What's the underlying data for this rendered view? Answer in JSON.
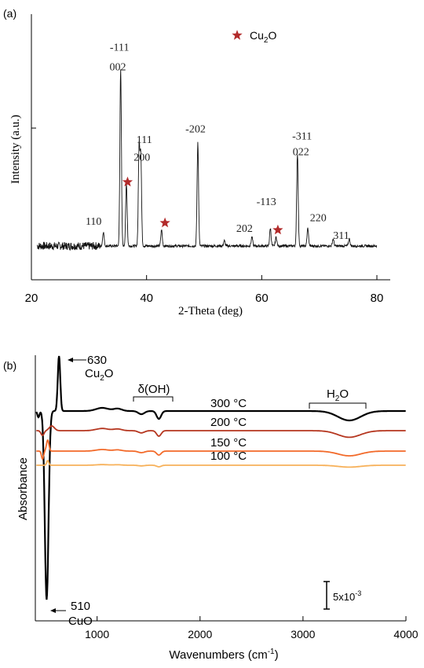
{
  "chart_data": [
    {
      "panel": "(a)",
      "type": "line",
      "xlabel": "2-Theta (deg)",
      "ylabel": "Intensity (a.u.)",
      "xlim": [
        20,
        80
      ],
      "xticks": [
        20,
        40,
        60,
        80
      ],
      "legend": {
        "marker": "star",
        "label": "Cu2O",
        "position": "top-center",
        "color": "#b22b2b"
      },
      "baseline": 10,
      "peaks": [
        {
          "x": 32.5,
          "h": 8
        },
        {
          "x": 35.5,
          "h": 100
        },
        {
          "x": 36.5,
          "h": 35
        },
        {
          "x": 38.7,
          "h": 55
        },
        {
          "x": 39.0,
          "h": 50
        },
        {
          "x": 42.6,
          "h": 9
        },
        {
          "x": 48.9,
          "h": 58
        },
        {
          "x": 53.5,
          "h": 3
        },
        {
          "x": 58.3,
          "h": 5
        },
        {
          "x": 61.5,
          "h": 10
        },
        {
          "x": 62.5,
          "h": 5
        },
        {
          "x": 66.2,
          "h": 52
        },
        {
          "x": 68.0,
          "h": 10
        },
        {
          "x": 72.4,
          "h": 4
        },
        {
          "x": 75.2,
          "h": 4
        }
      ],
      "labels": [
        {
          "text": "110",
          "x": 30.8,
          "y": 22
        },
        {
          "text": "-111",
          "x": 35.3,
          "y": 120
        },
        {
          "text": "002",
          "x": 35.0,
          "y": 109
        },
        {
          "text": "111",
          "x": 39.6,
          "y": 68
        },
        {
          "text": "200",
          "x": 39.2,
          "y": 58
        },
        {
          "text": "-202",
          "x": 48.5,
          "y": 74
        },
        {
          "text": "202",
          "x": 57.0,
          "y": 18
        },
        {
          "text": "-113",
          "x": 60.8,
          "y": 33
        },
        {
          "text": "-311",
          "x": 67.0,
          "y": 70
        },
        {
          "text": "022",
          "x": 66.8,
          "y": 61
        },
        {
          "text": "220",
          "x": 69.8,
          "y": 24
        },
        {
          "text": "311",
          "x": 73.8,
          "y": 14
        }
      ],
      "stars": [
        {
          "x": 36.7,
          "y": 46
        },
        {
          "x": 43.2,
          "y": 23
        },
        {
          "x": 62.8,
          "y": 19
        }
      ]
    },
    {
      "panel": "(b)",
      "type": "line",
      "xlabel": "Wavenumbers (cm⁻¹)",
      "ylabel": "Absorbance",
      "xlim": [
        400,
        4000
      ],
      "xticks": [
        1000,
        2000,
        3000,
        4000
      ],
      "scale_bar": "5x10⁻³",
      "annotations": [
        {
          "value": "630",
          "compound": "Cu2O"
        },
        {
          "value": "510",
          "compound": "CuO"
        }
      ],
      "band_labels": [
        {
          "text": "δ(OH)",
          "from": 1300,
          "to": 1700
        },
        {
          "text": "H2O",
          "from": 3050,
          "to": 3600
        }
      ],
      "series": [
        {
          "name": "300 °C",
          "color": "#000000",
          "offset": 62,
          "scale": 1.0
        },
        {
          "name": "200 °C",
          "color": "#b5361f",
          "offset": 48,
          "scale": 0.7
        },
        {
          "name": "150 °C",
          "color": "#f26a2a",
          "offset": 33,
          "scale": 0.5
        },
        {
          "name": "100 °C",
          "color": "#f7b15a",
          "offset": 23,
          "scale": 0.2
        }
      ]
    }
  ]
}
